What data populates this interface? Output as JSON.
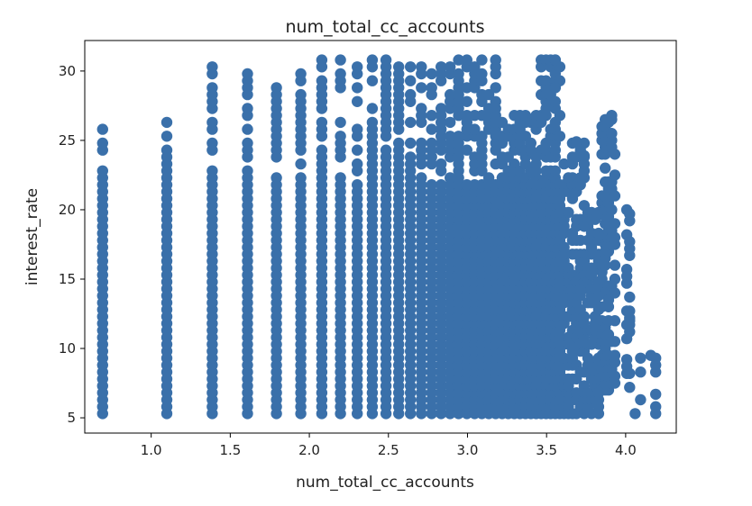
{
  "chart_data": {
    "type": "scatter",
    "title": "num_total_cc_accounts",
    "xlabel": "num_total_cc_accounts",
    "ylabel": "interest_rate",
    "xlim": [
      0.58,
      4.32
    ],
    "ylim": [
      3.9,
      32.2
    ],
    "xticks": [
      1.0,
      1.5,
      2.0,
      2.5,
      3.0,
      3.5,
      4.0
    ],
    "xtick_labels": [
      "1.0",
      "1.5",
      "2.0",
      "2.5",
      "3.0",
      "3.5",
      "4.0"
    ],
    "yticks": [
      5,
      10,
      15,
      20,
      25,
      30
    ],
    "ytick_labels": [
      "5",
      "10",
      "15",
      "20",
      "25",
      "30"
    ],
    "grid": false,
    "legend": "none",
    "marker_color": "#3a70aa",
    "x_levels": [
      0.693,
      1.099,
      1.386,
      1.609,
      1.792,
      1.946,
      2.079,
      2.197,
      2.303,
      2.398,
      2.485,
      2.565,
      2.639,
      2.708,
      2.773,
      2.833,
      2.89,
      2.944,
      2.996,
      3.045,
      3.091,
      3.135,
      3.178,
      3.219,
      3.258,
      3.296,
      3.332,
      3.367,
      3.401,
      3.434,
      3.466,
      3.497,
      3.526,
      3.555,
      3.584,
      3.611,
      3.638,
      3.664,
      3.689,
      3.714,
      3.738,
      3.761,
      3.784,
      3.807,
      3.829,
      3.85,
      3.871,
      3.892,
      3.912,
      3.932,
      4.007,
      4.025,
      4.094,
      4.19
    ],
    "y_ranges": [
      {
        "x_from": 0.6,
        "x_to": 0.8,
        "y_min": 5.3,
        "y_max": 25.8
      },
      {
        "x_from": 0.8,
        "x_to": 1.2,
        "y_min": 5.3,
        "y_max": 26.8
      },
      {
        "x_from": 1.2,
        "x_to": 1.5,
        "y_min": 5.3,
        "y_max": 30.8
      },
      {
        "x_from": 1.5,
        "x_to": 1.7,
        "y_min": 5.3,
        "y_max": 30.9
      },
      {
        "x_from": 1.7,
        "x_to": 1.9,
        "y_min": 5.3,
        "y_max": 28.8
      },
      {
        "x_from": 1.9,
        "x_to": 2.0,
        "y_min": 5.3,
        "y_max": 30.7
      },
      {
        "x_from": 2.0,
        "x_to": 2.5,
        "y_min": 5.3,
        "y_max": 30.9
      },
      {
        "x_from": 2.5,
        "x_to": 3.2,
        "y_min": 5.3,
        "y_max": 30.9
      },
      {
        "x_from": 3.2,
        "x_to": 3.45,
        "y_min": 5.3,
        "y_max": 26.8
      },
      {
        "x_from": 3.45,
        "x_to": 3.6,
        "y_min": 5.3,
        "y_max": 30.8
      },
      {
        "x_from": 3.6,
        "x_to": 3.75,
        "y_min": 5.3,
        "y_max": 24.9
      },
      {
        "x_from": 3.75,
        "x_to": 3.85,
        "y_min": 5.3,
        "y_max": 20.0
      },
      {
        "x_from": 3.85,
        "x_to": 3.95,
        "y_min": 6.5,
        "y_max": 26.8
      },
      {
        "x_from": 3.95,
        "x_to": 4.05,
        "y_min": 7.2,
        "y_max": 20.0
      },
      {
        "x_from": 4.05,
        "x_to": 4.3,
        "y_min": 5.3,
        "y_max": 9.5
      }
    ],
    "outliers": [
      {
        "x": 4.19,
        "y": 6.7
      },
      {
        "x": 4.159,
        "y": 9.5
      },
      {
        "x": 4.06,
        "y": 5.3
      },
      {
        "x": 4.025,
        "y": 12.0
      },
      {
        "x": 4.007,
        "y": 20.0
      },
      {
        "x": 3.912,
        "y": 26.8
      },
      {
        "x": 3.892,
        "y": 26.3
      },
      {
        "x": 3.738,
        "y": 23.9
      },
      {
        "x": 3.689,
        "y": 24.9
      },
      {
        "x": 3.555,
        "y": 30.8
      },
      {
        "x": 3.555,
        "y": 28.8
      }
    ]
  }
}
